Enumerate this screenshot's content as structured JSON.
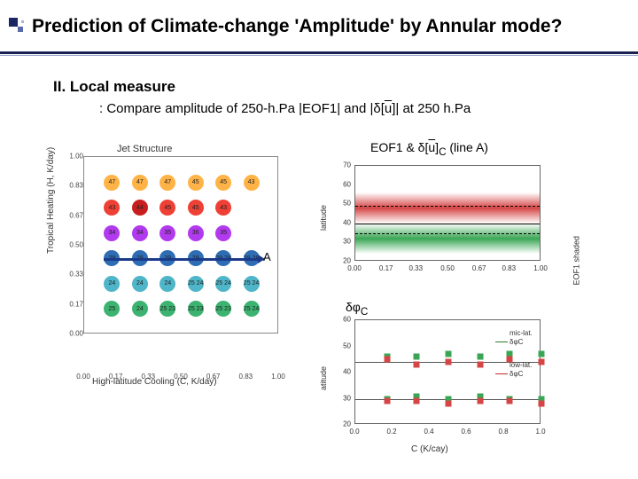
{
  "title": "Prediction of Climate-change 'Amplitude' by Annular mode?",
  "section": "II. Local measure",
  "subtitle_parts": {
    "p1": ": Compare amplitude of 250-h.Pa |EOF1| and |δ[",
    "p2": "u",
    "p3": "]| at 250 h.Pa"
  },
  "chartL": {
    "title": "Jet Structure",
    "ylabel": "Tropical Heating (H, K/day)",
    "xlabel": "High-latitude Cooling (C, K/day)",
    "ylim": [
      0.0,
      1.0
    ],
    "yticks": [
      "0.00",
      "0.17",
      "0.33",
      "0.50",
      "0.67",
      "0.83",
      "1.00"
    ],
    "xlim": [
      0.0,
      1.0
    ],
    "xticks": [
      "0.00",
      "0.17",
      "0.33",
      "0.50",
      "0.67",
      "0.83",
      "1.00"
    ],
    "row_colors": [
      "#ffb347",
      "#ee4035",
      "#b23aee",
      "#2e6db4",
      "#4fb5c8",
      "#3cb371"
    ],
    "highlight_color": "#c81e1e",
    "grid": [
      [
        47,
        47,
        47,
        45,
        45,
        43
      ],
      [
        43,
        44,
        45,
        45,
        43,
        -1
      ],
      [
        34,
        34,
        35,
        36,
        35,
        -1
      ],
      [
        28,
        28,
        29,
        29,
        "29 28",
        "28 28"
      ],
      [
        24,
        24,
        24,
        "25 24",
        "25 24",
        "25 24"
      ],
      [
        25,
        24,
        "25 23",
        "25 23",
        "25 23",
        "25 24"
      ]
    ],
    "arrow": {
      "row": 3,
      "color": "#1b3a8a"
    },
    "labelA": "A",
    "label_fontsize": 7,
    "dot_radius": 9,
    "bg": "#ffffff",
    "border_color": "#888888"
  },
  "chartRT": {
    "title_parts": {
      "p1": "EOF1 & δ[",
      "p2": "u",
      "p3": "]",
      "sub": "C",
      "p4": " (line A)"
    },
    "ylabel": "latitude",
    "rlabel": "EOF1 shaded",
    "ylim": [
      20,
      70
    ],
    "yticks": [
      "20",
      "30",
      "40",
      "50",
      "60",
      "70"
    ],
    "xlim": [
      0.0,
      1.0
    ],
    "xticks": [
      "0.00",
      "0.17",
      "0.33",
      "0.50",
      "0.67",
      "0.83",
      "1.00"
    ],
    "shade_pos": {
      "ymin": 40,
      "ymax": 56,
      "color": "#d64545",
      "fade": true
    },
    "shade_neg": {
      "ymin": 24,
      "ymax": 40,
      "color": "#3aa655",
      "fade": true
    },
    "zero_line_y": 40,
    "dashed_lines_y": [
      35,
      49
    ],
    "bg": "#ffffff"
  },
  "chartRB": {
    "title_parts": {
      "p1": "δφ",
      "sub": "C"
    },
    "ylabel": "atitude",
    "xlabel": "C (K/cay)",
    "ylim": [
      20,
      60
    ],
    "yticks": [
      "20",
      "30",
      "40",
      "50",
      "60"
    ],
    "xlim": [
      0.0,
      1.0
    ],
    "xticks": [
      "0.0",
      "0.2",
      "0.4",
      "0.6",
      "0.8",
      "1.0"
    ],
    "legend": [
      {
        "text": "mic-lat.",
        "color": "#333333"
      },
      {
        "text": "δφC",
        "color": "#333333"
      },
      {
        "text": "low-lat.",
        "color": "#333333"
      },
      {
        "text": "δφC",
        "color": "#333333"
      }
    ],
    "legend_line_colors": [
      "#2e7d32",
      "#c62828"
    ],
    "line_mid": {
      "y": 44,
      "color": "#555555"
    },
    "line_low": {
      "y": 30,
      "color": "#555555"
    },
    "points_mid": {
      "color_a": "#3aa655",
      "color_b": "#d64545",
      "x": [
        0.17,
        0.33,
        0.5,
        0.67,
        0.83,
        1.0
      ],
      "ya": [
        46,
        46,
        47,
        46,
        47,
        47
      ],
      "yb": [
        45,
        43,
        44,
        43,
        45,
        44
      ]
    },
    "points_low": {
      "color_a": "#3aa655",
      "color_b": "#d64545",
      "x": [
        0.17,
        0.33,
        0.5,
        0.67,
        0.83,
        1.0
      ],
      "ya": [
        30,
        31,
        30,
        31,
        30,
        30
      ],
      "yb": [
        29,
        29,
        28,
        29,
        29,
        28
      ]
    },
    "bg": "#ffffff"
  }
}
